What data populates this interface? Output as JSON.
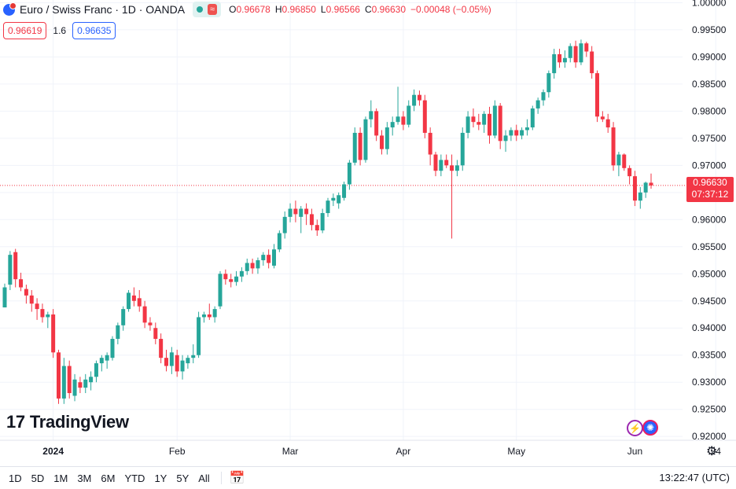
{
  "header": {
    "title": "Euro / Swiss Franc · 1D · OANDA",
    "wave_badge": "≈",
    "ohlc": [
      {
        "key": "O",
        "value": "0.96678"
      },
      {
        "key": "H",
        "value": "0.96850"
      },
      {
        "key": "L",
        "value": "0.96566"
      },
      {
        "key": "C",
        "value": "0.96630"
      },
      {
        "key": "",
        "value": "−0.00048 (−0.05%)"
      }
    ]
  },
  "bidask": {
    "bid": "0.96619",
    "spread": "1.6",
    "ask": "0.96635"
  },
  "price_label": {
    "price": "0.96630",
    "countdown": "07:37:12"
  },
  "logo": {
    "mark": "17",
    "text": "TradingView"
  },
  "toolbar": {
    "timeframes": [
      "1D",
      "5D",
      "1M",
      "3M",
      "6M",
      "YTD",
      "1Y",
      "5Y",
      "All"
    ],
    "clock": "13:22:47 (UTC)"
  },
  "colors": {
    "up": "#26a69a",
    "down": "#f23645",
    "accent": "#2962ff"
  },
  "chart_data": {
    "type": "candlestick",
    "title": "Euro / Swiss Franc · 1D · OANDA",
    "ylim": [
      0.9193,
      1.0005
    ],
    "y_ticks": [
      "1.00000",
      "0.99500",
      "0.99000",
      "0.98500",
      "0.98000",
      "0.97500",
      "0.97000",
      "0.96500",
      "0.96000",
      "0.95500",
      "0.95000",
      "0.94500",
      "0.94000",
      "0.93500",
      "0.93000",
      "0.92500",
      "0.92000"
    ],
    "x_ticks": [
      {
        "label": "2024",
        "index": 9
      },
      {
        "label": "Feb",
        "index": 32
      },
      {
        "label": "Mar",
        "index": 53
      },
      {
        "label": "Apr",
        "index": 74
      },
      {
        "label": "May",
        "index": 95
      },
      {
        "label": "Jun",
        "index": 117
      },
      {
        "label": "24",
        "index": 132
      }
    ],
    "last_price": 0.9663,
    "candles": [
      [
        0.9438,
        0.9482,
        0.944,
        0.9475
      ],
      [
        0.948,
        0.9542,
        0.947,
        0.9535
      ],
      [
        0.954,
        0.9546,
        0.9475,
        0.949
      ],
      [
        0.949,
        0.9502,
        0.9468,
        0.9475
      ],
      [
        0.9472,
        0.948,
        0.9445,
        0.946
      ],
      [
        0.946,
        0.947,
        0.943,
        0.9445
      ],
      [
        0.9445,
        0.9455,
        0.9415,
        0.9435
      ],
      [
        0.9435,
        0.9445,
        0.941,
        0.942
      ],
      [
        0.942,
        0.943,
        0.94,
        0.9425
      ],
      [
        0.9425,
        0.9435,
        0.9345,
        0.9355
      ],
      [
        0.9355,
        0.936,
        0.926,
        0.927
      ],
      [
        0.927,
        0.9345,
        0.926,
        0.933
      ],
      [
        0.933,
        0.934,
        0.927,
        0.928
      ],
      [
        0.9275,
        0.9315,
        0.9265,
        0.9305
      ],
      [
        0.93,
        0.931,
        0.928,
        0.929
      ],
      [
        0.929,
        0.9315,
        0.928,
        0.9305
      ],
      [
        0.93,
        0.932,
        0.9285,
        0.931
      ],
      [
        0.931,
        0.934,
        0.93,
        0.9335
      ],
      [
        0.9335,
        0.935,
        0.932,
        0.9345
      ],
      [
        0.934,
        0.9355,
        0.9325,
        0.935
      ],
      [
        0.9345,
        0.9385,
        0.934,
        0.938
      ],
      [
        0.938,
        0.941,
        0.937,
        0.9405
      ],
      [
        0.9405,
        0.944,
        0.9395,
        0.9435
      ],
      [
        0.9435,
        0.947,
        0.943,
        0.9465
      ],
      [
        0.946,
        0.9475,
        0.944,
        0.945
      ],
      [
        0.9455,
        0.947,
        0.943,
        0.944
      ],
      [
        0.944,
        0.945,
        0.94,
        0.941
      ],
      [
        0.941,
        0.942,
        0.9395,
        0.9405
      ],
      [
        0.94,
        0.941,
        0.937,
        0.938
      ],
      [
        0.938,
        0.939,
        0.9335,
        0.9345
      ],
      [
        0.9345,
        0.936,
        0.932,
        0.933
      ],
      [
        0.933,
        0.9365,
        0.9315,
        0.9355
      ],
      [
        0.935,
        0.936,
        0.931,
        0.932
      ],
      [
        0.932,
        0.935,
        0.9305,
        0.934
      ],
      [
        0.9335,
        0.935,
        0.9325,
        0.9345
      ],
      [
        0.9345,
        0.937,
        0.9335,
        0.935
      ],
      [
        0.935,
        0.943,
        0.9345,
        0.942
      ],
      [
        0.942,
        0.943,
        0.941,
        0.9425
      ],
      [
        0.9425,
        0.9445,
        0.9415,
        0.942
      ],
      [
        0.942,
        0.944,
        0.941,
        0.9435
      ],
      [
        0.944,
        0.9505,
        0.9435,
        0.95
      ],
      [
        0.95,
        0.9508,
        0.948,
        0.949
      ],
      [
        0.949,
        0.95,
        0.9475,
        0.9485
      ],
      [
        0.9485,
        0.9505,
        0.9478,
        0.9495
      ],
      [
        0.9495,
        0.9512,
        0.9485,
        0.9505
      ],
      [
        0.9505,
        0.9528,
        0.9498,
        0.952
      ],
      [
        0.952,
        0.9528,
        0.95,
        0.951
      ],
      [
        0.951,
        0.953,
        0.95,
        0.9525
      ],
      [
        0.9525,
        0.954,
        0.9515,
        0.9535
      ],
      [
        0.9535,
        0.9545,
        0.951,
        0.952
      ],
      [
        0.9515,
        0.9555,
        0.951,
        0.9545
      ],
      [
        0.9545,
        0.958,
        0.954,
        0.9575
      ],
      [
        0.9575,
        0.9615,
        0.9565,
        0.9605
      ],
      [
        0.9605,
        0.963,
        0.9595,
        0.962
      ],
      [
        0.962,
        0.9635,
        0.9595,
        0.961
      ],
      [
        0.9605,
        0.9625,
        0.9575,
        0.962
      ],
      [
        0.962,
        0.963,
        0.959,
        0.961
      ],
      [
        0.961,
        0.962,
        0.958,
        0.959
      ],
      [
        0.959,
        0.96,
        0.957,
        0.958
      ],
      [
        0.958,
        0.962,
        0.9575,
        0.9612
      ],
      [
        0.9612,
        0.964,
        0.9605,
        0.9635
      ],
      [
        0.9635,
        0.9648,
        0.9625,
        0.964
      ],
      [
        0.963,
        0.965,
        0.962,
        0.9645
      ],
      [
        0.964,
        0.967,
        0.9635,
        0.9665
      ],
      [
        0.9665,
        0.971,
        0.9655,
        0.9705
      ],
      [
        0.9705,
        0.977,
        0.97,
        0.976
      ],
      [
        0.976,
        0.977,
        0.97,
        0.971
      ],
      [
        0.971,
        0.979,
        0.9705,
        0.9785
      ],
      [
        0.9785,
        0.982,
        0.977,
        0.98
      ],
      [
        0.98,
        0.9805,
        0.9745,
        0.9755
      ],
      [
        0.9755,
        0.9765,
        0.972,
        0.973
      ],
      [
        0.973,
        0.978,
        0.972,
        0.977
      ],
      [
        0.977,
        0.979,
        0.9755,
        0.978
      ],
      [
        0.978,
        0.9845,
        0.9775,
        0.979
      ],
      [
        0.979,
        0.98,
        0.9765,
        0.9775
      ],
      [
        0.9775,
        0.982,
        0.977,
        0.981
      ],
      [
        0.981,
        0.984,
        0.98,
        0.983
      ],
      [
        0.983,
        0.9838,
        0.981,
        0.982
      ],
      [
        0.982,
        0.983,
        0.975,
        0.976
      ],
      [
        0.976,
        0.977,
        0.97,
        0.972
      ],
      [
        0.972,
        0.9725,
        0.968,
        0.969
      ],
      [
        0.969,
        0.972,
        0.968,
        0.971
      ],
      [
        0.971,
        0.972,
        0.9695,
        0.97
      ],
      [
        0.97,
        0.972,
        0.9565,
        0.969
      ],
      [
        0.969,
        0.971,
        0.968,
        0.97
      ],
      [
        0.97,
        0.977,
        0.969,
        0.976
      ],
      [
        0.976,
        0.98,
        0.975,
        0.979
      ],
      [
        0.979,
        0.9805,
        0.977,
        0.978
      ],
      [
        0.978,
        0.9795,
        0.9765,
        0.9775
      ],
      [
        0.9775,
        0.98,
        0.976,
        0.9795
      ],
      [
        0.9795,
        0.9808,
        0.974,
        0.9755
      ],
      [
        0.9755,
        0.982,
        0.975,
        0.981
      ],
      [
        0.981,
        0.9815,
        0.973,
        0.9745
      ],
      [
        0.9745,
        0.9765,
        0.9725,
        0.9755
      ],
      [
        0.9755,
        0.977,
        0.9745,
        0.9765
      ],
      [
        0.9765,
        0.9775,
        0.9745,
        0.9755
      ],
      [
        0.9755,
        0.977,
        0.9748,
        0.9765
      ],
      [
        0.9765,
        0.9785,
        0.9755,
        0.977
      ],
      [
        0.977,
        0.981,
        0.9765,
        0.9805
      ],
      [
        0.9805,
        0.9825,
        0.9795,
        0.982
      ],
      [
        0.982,
        0.984,
        0.981,
        0.9835
      ],
      [
        0.9835,
        0.9875,
        0.9825,
        0.987
      ],
      [
        0.987,
        0.9915,
        0.986,
        0.9905
      ],
      [
        0.9905,
        0.9915,
        0.988,
        0.989
      ],
      [
        0.989,
        0.9912,
        0.988,
        0.9898
      ],
      [
        0.9898,
        0.9925,
        0.989,
        0.992
      ],
      [
        0.992,
        0.993,
        0.988,
        0.989
      ],
      [
        0.989,
        0.9932,
        0.9885,
        0.9925
      ],
      [
        0.9925,
        0.9928,
        0.99,
        0.991
      ],
      [
        0.991,
        0.992,
        0.986,
        0.987
      ],
      [
        0.987,
        0.9875,
        0.978,
        0.979
      ],
      [
        0.979,
        0.98,
        0.978,
        0.9785
      ],
      [
        0.9785,
        0.9795,
        0.976,
        0.977
      ],
      [
        0.977,
        0.978,
        0.969,
        0.97
      ],
      [
        0.97,
        0.9725,
        0.968,
        0.972
      ],
      [
        0.972,
        0.9722,
        0.969,
        0.9695
      ],
      [
        0.9695,
        0.97,
        0.9665,
        0.968
      ],
      [
        0.968,
        0.969,
        0.9625,
        0.9635
      ],
      [
        0.9635,
        0.966,
        0.962,
        0.965
      ],
      [
        0.965,
        0.967,
        0.964,
        0.9668
      ],
      [
        0.9668,
        0.9685,
        0.9657,
        0.9663
      ]
    ]
  }
}
